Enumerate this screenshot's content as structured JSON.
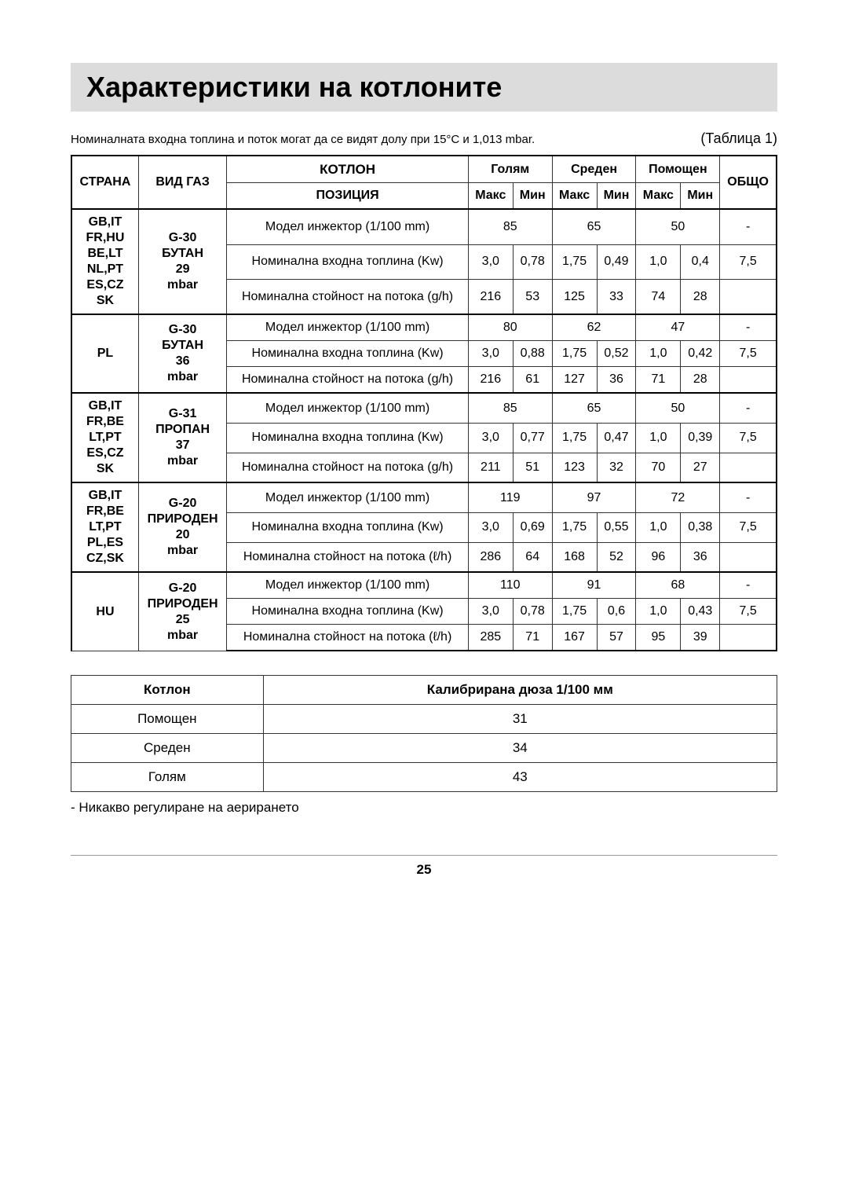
{
  "title": "Характеристики на котлоните",
  "subtitle_note": "Номиналната входна топлина и поток могат да се видят долу при 15°C и 1,013 mbar.",
  "table_label": "(Таблица 1)",
  "headers": {
    "country": "СТРАНА",
    "gas": "ВИД ГАЗ",
    "burner": "КОТЛОН",
    "position": "ПОЗИЦИЯ",
    "large": "Голям",
    "medium": "Среден",
    "aux": "Помощен",
    "total": "ОБЩО",
    "max": "Макс",
    "min": "Мин"
  },
  "row_labels": {
    "injector": "Модел инжектор (1/100 mm)",
    "heat": "Номинална входна топлина (Kw)",
    "flow_g": "Номинална стойност на потока (g/h)",
    "flow_l": "Номинална стойност на потока (ℓ/h)"
  },
  "groups": [
    {
      "country": "GB,IT FR,HU BE,LT NL,PT ES,CZ SK",
      "gas": "G-30 БУТАН 29 mbar",
      "rows": [
        {
          "label": "injector",
          "large": "85",
          "large_min": "",
          "medium": "65",
          "medium_min": "",
          "aux": "50",
          "aux_min": "",
          "total": "-",
          "merged": true
        },
        {
          "label": "heat",
          "large": "3,0",
          "large_min": "0,78",
          "medium": "1,75",
          "medium_min": "0,49",
          "aux": "1,0",
          "aux_min": "0,4",
          "total": "7,5"
        },
        {
          "label": "flow_g",
          "large": "216",
          "large_min": "53",
          "medium": "125",
          "medium_min": "33",
          "aux": "74",
          "aux_min": "28",
          "total": ""
        }
      ]
    },
    {
      "country": "PL",
      "gas": "G-30 БУТАН 36 mbar",
      "rows": [
        {
          "label": "injector",
          "large": "80",
          "medium": "62",
          "aux": "47",
          "total": "-",
          "merged": true
        },
        {
          "label": "heat",
          "large": "3,0",
          "large_min": "0,88",
          "medium": "1,75",
          "medium_min": "0,52",
          "aux": "1,0",
          "aux_min": "0,42",
          "total": "7,5"
        },
        {
          "label": "flow_g",
          "large": "216",
          "large_min": "61",
          "medium": "127",
          "medium_min": "36",
          "aux": "71",
          "aux_min": "28",
          "total": ""
        }
      ]
    },
    {
      "country": "GB,IT FR,BE LT,PT ES,CZ SK",
      "gas": "G-31 ПРОПАН 37 mbar",
      "rows": [
        {
          "label": "injector",
          "large": "85",
          "medium": "65",
          "aux": "50",
          "total": "-",
          "merged": true
        },
        {
          "label": "heat",
          "large": "3,0",
          "large_min": "0,77",
          "medium": "1,75",
          "medium_min": "0,47",
          "aux": "1,0",
          "aux_min": "0,39",
          "total": "7,5"
        },
        {
          "label": "flow_g",
          "large": "211",
          "large_min": "51",
          "medium": "123",
          "medium_min": "32",
          "aux": "70",
          "aux_min": "27",
          "total": ""
        }
      ]
    },
    {
      "country": "GB,IT FR,BE LT,PT PL,ES CZ,SK",
      "gas": "G-20 ПРИРОДЕН 20 mbar",
      "rows": [
        {
          "label": "injector",
          "large": "119",
          "medium": "97",
          "aux": "72",
          "total": "-",
          "merged": true
        },
        {
          "label": "heat",
          "large": "3,0",
          "large_min": "0,69",
          "medium": "1,75",
          "medium_min": "0,55",
          "aux": "1,0",
          "aux_min": "0,38",
          "total": "7,5"
        },
        {
          "label": "flow_l",
          "large": "286",
          "large_min": "64",
          "medium": "168",
          "medium_min": "52",
          "aux": "96",
          "aux_min": "36",
          "total": ""
        }
      ]
    },
    {
      "country": "HU",
      "gas": "G-20 ПРИРОДЕН 25 mbar",
      "rows": [
        {
          "label": "injector",
          "large": "110",
          "medium": "91",
          "aux": "68",
          "total": "-",
          "merged": true
        },
        {
          "label": "heat",
          "large": "3,0",
          "large_min": "0,78",
          "medium": "1,75",
          "medium_min": "0,6",
          "aux": "1,0",
          "aux_min": "0,43",
          "total": "7,5"
        },
        {
          "label": "flow_l",
          "large": "285",
          "large_min": "71",
          "medium": "167",
          "medium_min": "57",
          "aux": "95",
          "aux_min": "39",
          "total": ""
        }
      ]
    }
  ],
  "secondary": {
    "headers": {
      "burner": "Котлон",
      "nozzle": "Калибрирана дюза 1/100 мм"
    },
    "rows": [
      {
        "burner": "Помощен",
        "nozzle": "31"
      },
      {
        "burner": "Среден",
        "nozzle": "34"
      },
      {
        "burner": "Голям",
        "nozzle": "43"
      }
    ]
  },
  "footnote": "- Никакво регулиране на аерирането",
  "page_number": "25"
}
